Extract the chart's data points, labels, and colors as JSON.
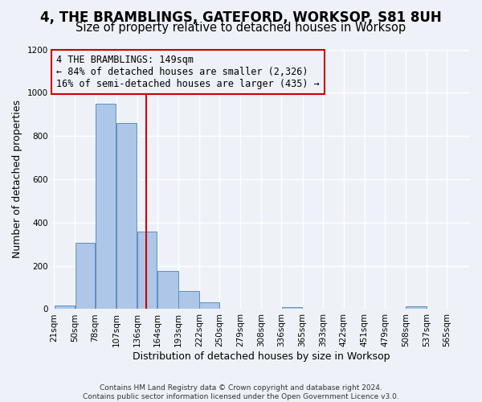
{
  "title": "4, THE BRAMBLINGS, GATEFORD, WORKSOP, S81 8UH",
  "subtitle": "Size of property relative to detached houses in Worksop",
  "xlabel": "Distribution of detached houses by size in Worksop",
  "ylabel": "Number of detached properties",
  "footer_line1": "Contains HM Land Registry data © Crown copyright and database right 2024.",
  "footer_line2": "Contains public sector information licensed under the Open Government Licence v3.0.",
  "annotation_title": "4 THE BRAMBLINGS: 149sqm",
  "annotation_line1": "← 84% of detached houses are smaller (2,326)",
  "annotation_line2": "16% of semi-detached houses are larger (435) →",
  "bar_edges": [
    21,
    50,
    78,
    107,
    136,
    164,
    193,
    222,
    250,
    279,
    308,
    336,
    365,
    393,
    422,
    451,
    479,
    508,
    537,
    565,
    594
  ],
  "bar_values": [
    15,
    305,
    950,
    860,
    360,
    175,
    85,
    30,
    0,
    0,
    0,
    10,
    0,
    0,
    0,
    0,
    0,
    12,
    0,
    0
  ],
  "bar_color": "#aec6e8",
  "bar_edge_color": "#5a8fc0",
  "vline_x": 149,
  "vline_color": "#cc0000",
  "annotation_box_color": "#cc0000",
  "ylim": [
    0,
    1200
  ],
  "yticks": [
    0,
    200,
    400,
    600,
    800,
    1000,
    1200
  ],
  "bg_color": "#eef2f8",
  "grid_color": "#ffffff",
  "title_fontsize": 12,
  "subtitle_fontsize": 10.5,
  "label_fontsize": 9,
  "tick_fontsize": 7.5,
  "annotation_fontsize": 8.5,
  "footer_fontsize": 6.5
}
